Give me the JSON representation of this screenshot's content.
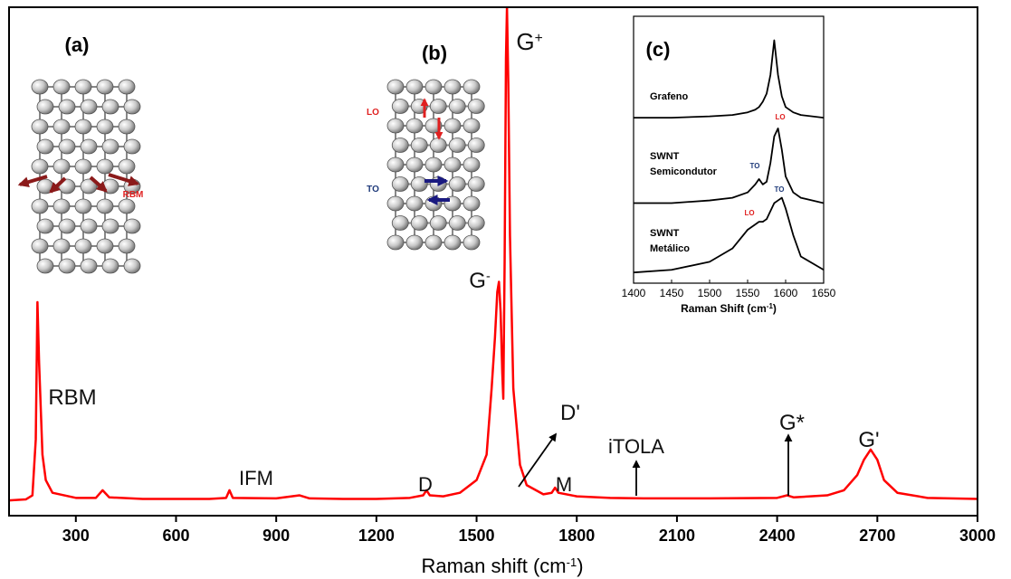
{
  "chart_data": [
    {
      "type": "line",
      "xlabel": {
        "text": "Raman shift (cm",
        "sup": "-1",
        "tail": ")"
      },
      "x": [
        100,
        150,
        170,
        180,
        185,
        190,
        200,
        210,
        230,
        300,
        360,
        380,
        400,
        500,
        700,
        750,
        760,
        770,
        900,
        970,
        1000,
        1100,
        1200,
        1300,
        1340,
        1350,
        1360,
        1400,
        1450,
        1500,
        1530,
        1545,
        1555,
        1562,
        1567,
        1572,
        1577,
        1580,
        1584,
        1588,
        1591,
        1595,
        1600,
        1610,
        1630,
        1650,
        1700,
        1725,
        1735,
        1745,
        1800,
        1900,
        2000,
        2200,
        2400,
        2430,
        2450,
        2550,
        2600,
        2640,
        2660,
        2680,
        2700,
        2720,
        2760,
        2850,
        3000
      ],
      "values": [
        3,
        3.2,
        4,
        15,
        42,
        30,
        12,
        7,
        4.5,
        3.5,
        3.5,
        5,
        3.6,
        3.3,
        3.3,
        3.5,
        5,
        3.5,
        3.4,
        4,
        3.4,
        3.3,
        3.3,
        3.5,
        4,
        5,
        4,
        3.8,
        4.5,
        7,
        12,
        25,
        35,
        44,
        46,
        40,
        28,
        23,
        50,
        90,
        100,
        85,
        55,
        25,
        10,
        6,
        4.2,
        4.5,
        5.5,
        4.5,
        3.8,
        3.5,
        3.4,
        3.4,
        3.5,
        4,
        3.6,
        4,
        5,
        8,
        11,
        13,
        11,
        7,
        4.5,
        3.5,
        3.3
      ],
      "color": "#ff0000",
      "xlim": [
        100,
        3000
      ],
      "ylim": [
        0,
        100
      ],
      "xticks": [
        300,
        600,
        900,
        1200,
        1500,
        1800,
        2100,
        2400,
        2700,
        3000
      ],
      "annotations": [
        {
          "text": "RBM"
        },
        {
          "text": "IFM"
        },
        {
          "text": "D"
        },
        {
          "text": "G",
          "sup": "-"
        },
        {
          "text": "G",
          "sup": "+"
        },
        {
          "text": "D'"
        },
        {
          "text": "M"
        },
        {
          "text": "iTOLA"
        },
        {
          "text": "G*"
        },
        {
          "text": "G'"
        }
      ],
      "diagram_labels": [
        {
          "text": "(a)"
        },
        {
          "text": "(b)"
        },
        {
          "text": "RBM"
        },
        {
          "text": "LO"
        },
        {
          "text": "TO"
        }
      ]
    },
    {
      "type": "line",
      "panel_label": "(c)",
      "xlabel": {
        "text": "Raman Shift (cm",
        "sup": "-1",
        "tail": ")"
      },
      "x": [
        1400,
        1450,
        1500,
        1530,
        1550,
        1560,
        1565,
        1570,
        1575,
        1580,
        1585,
        1590,
        1595,
        1600,
        1610,
        1620,
        1650
      ],
      "series": [
        {
          "label_lines": [
            "Grafeno"
          ],
          "color": "#000000",
          "values": [
            62,
            62,
            62.5,
            63,
            64,
            65,
            66,
            68,
            71,
            78,
            91,
            78,
            70,
            66,
            64,
            63,
            62
          ],
          "peak_labels": [
            {
              "text": "LO",
              "color": "#e02020"
            }
          ]
        },
        {
          "label_lines": [
            "SWNT",
            "Semicondutor"
          ],
          "color": "#000000",
          "values": [
            30,
            30,
            31,
            32,
            34,
            37,
            39,
            37,
            38,
            45,
            55,
            58,
            50,
            40,
            34,
            32,
            30
          ],
          "peak_labels": [
            {
              "text": "TO",
              "color": "#1f3a7a"
            }
          ]
        },
        {
          "label_lines": [
            "SWNT",
            "Metálico"
          ],
          "color": "#000000",
          "values": [
            4,
            5,
            8,
            13,
            20,
            22,
            23,
            23,
            24,
            27,
            30,
            31,
            32,
            28,
            18,
            10,
            5
          ],
          "peak_labels": [
            {
              "text": "TO",
              "color": "#1f3a7a"
            },
            {
              "text": "LO",
              "color": "#e02020"
            }
          ]
        }
      ],
      "xlim": [
        1400,
        1650
      ],
      "ylim": [
        0,
        100
      ],
      "xticks": [
        1400,
        1450,
        1500,
        1550,
        1600,
        1650
      ]
    }
  ]
}
